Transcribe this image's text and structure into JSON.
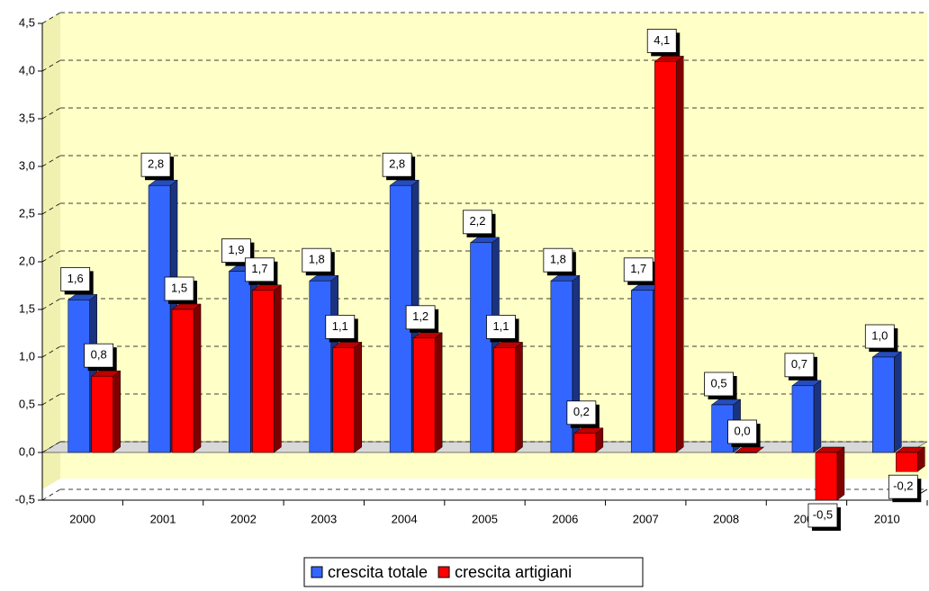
{
  "chart_data": {
    "type": "bar",
    "categories": [
      "2000",
      "2001",
      "2002",
      "2003",
      "2004",
      "2005",
      "2006",
      "2007",
      "2008",
      "2009",
      "2010"
    ],
    "series": [
      {
        "name": "crescita totale",
        "color": "#3366ff",
        "values": [
          1.6,
          2.8,
          1.9,
          1.8,
          2.8,
          2.2,
          1.8,
          1.7,
          0.5,
          0.7,
          1.0
        ],
        "value_labels": [
          "1,6",
          "2,8",
          "1,9",
          "1,8",
          "2,8",
          "2,2",
          "1,8",
          "1,7",
          "0,5",
          "0,7",
          "1,0"
        ]
      },
      {
        "name": "crescita artigiani",
        "color": "#ff0000",
        "values": [
          0.8,
          1.5,
          1.7,
          1.1,
          1.2,
          1.1,
          0.2,
          4.1,
          0.0,
          -0.5,
          -0.2
        ],
        "value_labels": [
          "0,8",
          "1,5",
          "1,7",
          "1,1",
          "1,2",
          "1,1",
          "0,2",
          "4,1",
          "0,0",
          "-0,5",
          "-0,2"
        ]
      }
    ],
    "ylim": [
      -0.5,
      4.5
    ],
    "yticks": [
      {
        "value": -0.5,
        "label": "-0,5"
      },
      {
        "value": 0,
        "label": "0,0"
      },
      {
        "value": 0.5,
        "label": "0,5"
      },
      {
        "value": 1,
        "label": "1,0"
      },
      {
        "value": 1.5,
        "label": "1,5"
      },
      {
        "value": 2,
        "label": "2,0"
      },
      {
        "value": 2.5,
        "label": "2,5"
      },
      {
        "value": 3,
        "label": "3,0"
      },
      {
        "value": 3.5,
        "label": "3,5"
      },
      {
        "value": 4,
        "label": "4,0"
      },
      {
        "value": 4.5,
        "label": "4,5"
      }
    ],
    "grid": true,
    "legend": "bottom"
  }
}
